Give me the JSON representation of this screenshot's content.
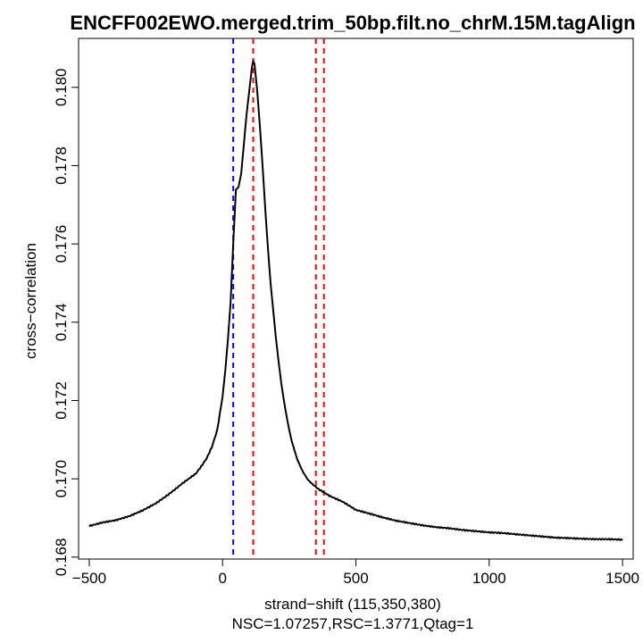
{
  "chart_data": {
    "type": "line",
    "title": "ENCFF002EWO.merged.trim_50bp.filt.no_chrM.15M.tagAlign",
    "xlabel": "strand−shift (115,350,380)",
    "subtitle": "NSC=1.07257,RSC=1.3771,Qtag=1",
    "ylabel": "cross−correlation",
    "xlim": [
      -540,
      1540
    ],
    "ylim": [
      0.16795,
      0.18125
    ],
    "x_ticks": [
      -500,
      0,
      500,
      1000,
      1500
    ],
    "x_tick_labels": [
      "−500",
      "0",
      "500",
      "1000",
      "1500"
    ],
    "y_ticks": [
      0.168,
      0.17,
      0.172,
      0.174,
      0.176,
      0.178,
      0.18
    ],
    "y_tick_labels": [
      "0.168",
      "0.170",
      "0.172",
      "0.174",
      "0.176",
      "0.178",
      "0.180"
    ],
    "grid": false,
    "series": [
      {
        "color": "#000000",
        "x": [
          -500,
          -450,
          -400,
          -350,
          -300,
          -250,
          -200,
          -150,
          -100,
          -80,
          -60,
          -40,
          -20,
          0,
          10,
          20,
          30,
          40,
          50,
          60,
          70,
          80,
          90,
          100,
          110,
          115,
          120,
          130,
          140,
          150,
          160,
          170,
          180,
          190,
          200,
          210,
          220,
          230,
          240,
          250,
          260,
          280,
          300,
          320,
          340,
          360,
          380,
          400,
          450,
          500,
          550,
          600,
          650,
          700,
          750,
          800,
          850,
          900,
          950,
          1000,
          1050,
          1100,
          1150,
          1200,
          1250,
          1300,
          1350,
          1400,
          1450,
          1500
        ],
        "y": [
          0.1688,
          0.16888,
          0.16893,
          0.16903,
          0.16918,
          0.16937,
          0.16962,
          0.1699,
          0.17015,
          0.17033,
          0.17053,
          0.17082,
          0.17125,
          0.1721,
          0.17275,
          0.17355,
          0.1745,
          0.176,
          0.17738,
          0.17745,
          0.1778,
          0.17855,
          0.1793,
          0.1799,
          0.1805,
          0.18068,
          0.18058,
          0.1799,
          0.179,
          0.178,
          0.1769,
          0.1759,
          0.175,
          0.1743,
          0.1736,
          0.173,
          0.17245,
          0.172,
          0.1716,
          0.17125,
          0.17095,
          0.1705,
          0.1702,
          0.16998,
          0.16985,
          0.16975,
          0.16967,
          0.16958,
          0.16942,
          0.1692,
          0.1691,
          0.169,
          0.16892,
          0.16887,
          0.16882,
          0.16878,
          0.16875,
          0.1687,
          0.16866,
          0.16862,
          0.1686,
          0.16857,
          0.16855,
          0.16853,
          0.16851,
          0.1685,
          0.16848,
          0.16846,
          0.16845,
          0.16843
        ]
      }
    ],
    "vlines": [
      {
        "x": 40,
        "color": "#0000ff",
        "style": "dashed"
      },
      {
        "x": 115,
        "color": "#ff0000",
        "style": "dashed"
      },
      {
        "x": 350,
        "color": "#ff0000",
        "style": "dashed"
      },
      {
        "x": 380,
        "color": "#ff0000",
        "style": "dashed"
      }
    ]
  }
}
